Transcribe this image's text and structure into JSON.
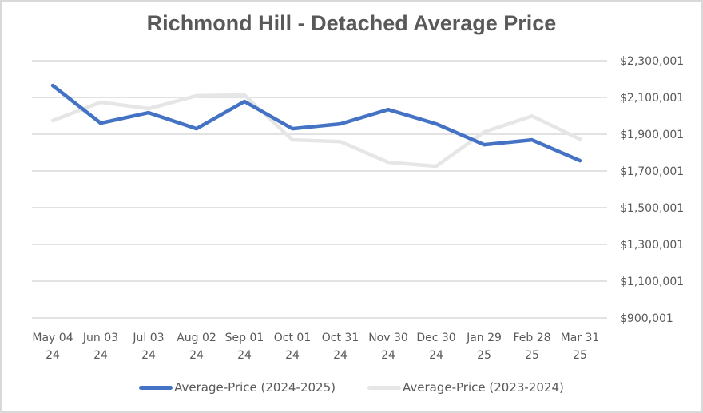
{
  "chart_data": {
    "type": "line",
    "title": "Richmond Hill - Detached Average Price",
    "xlabel": "",
    "ylabel": "",
    "ylim": [
      900001,
      2300001
    ],
    "y_axis_position": "right",
    "yticks": [
      900001,
      1100001,
      1300001,
      1500001,
      1700001,
      1900001,
      2100001,
      2300001
    ],
    "ytick_labels": [
      "$900,001",
      "$1,100,001",
      "$1,300,001",
      "$1,500,001",
      "$1,700,001",
      "$1,900,001",
      "$2,100,001",
      "$2,300,001"
    ],
    "grid": true,
    "legend_position": "bottom",
    "categories": [
      [
        "May 04",
        "24"
      ],
      [
        "Jun 03",
        "24"
      ],
      [
        "Jul 03",
        "24"
      ],
      [
        "Aug 02",
        "24"
      ],
      [
        "Sep 01",
        "24"
      ],
      [
        "Oct 01",
        "24"
      ],
      [
        "Oct 31",
        "24"
      ],
      [
        "Nov 30",
        "24"
      ],
      [
        "Dec 30",
        "24"
      ],
      [
        "Jan 29",
        "25"
      ],
      [
        "Feb 28",
        "25"
      ],
      [
        "Mar 31",
        "25"
      ]
    ],
    "series": [
      {
        "name": "Average-Price (2024-2025)",
        "color": "#4472c4",
        "values": [
          2165000,
          1960000,
          2017000,
          1930000,
          2078000,
          1930000,
          1956000,
          2034000,
          1956000,
          1843000,
          1869000,
          1756000
        ]
      },
      {
        "name": "Average-Price (2023-2024)",
        "color": "#e7e6e6",
        "values": [
          1974000,
          2074000,
          2039000,
          2109000,
          2113000,
          1869000,
          1860000,
          1747000,
          1726000,
          1912000,
          1999000,
          1873000
        ]
      }
    ]
  }
}
